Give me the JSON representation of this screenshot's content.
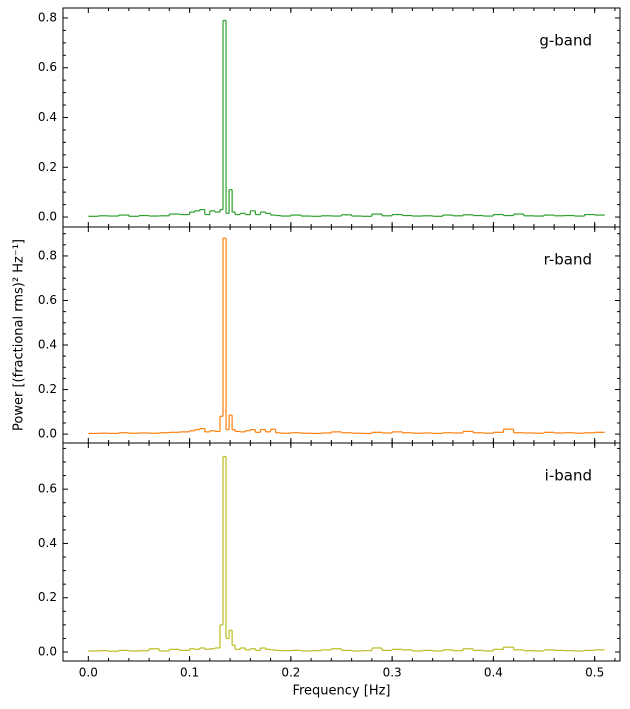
{
  "chart_data": [
    {
      "type": "line",
      "x": [
        0.0,
        0.01,
        0.02,
        0.03,
        0.04,
        0.05,
        0.06,
        0.07,
        0.08,
        0.09,
        0.1,
        0.105,
        0.11,
        0.115,
        0.12,
        0.125,
        0.13,
        0.133,
        0.136,
        0.139,
        0.142,
        0.145,
        0.15,
        0.155,
        0.16,
        0.165,
        0.17,
        0.175,
        0.18,
        0.185,
        0.19,
        0.2,
        0.21,
        0.22,
        0.23,
        0.24,
        0.25,
        0.26,
        0.27,
        0.28,
        0.29,
        0.3,
        0.31,
        0.32,
        0.33,
        0.34,
        0.35,
        0.36,
        0.37,
        0.38,
        0.39,
        0.4,
        0.41,
        0.42,
        0.43,
        0.44,
        0.45,
        0.46,
        0.47,
        0.48,
        0.49,
        0.5
      ],
      "series": [
        {
          "name": "g-band",
          "color": "#2ca02c",
          "values": [
            0.003,
            0.005,
            0.004,
            0.008,
            0.003,
            0.006,
            0.004,
            0.005,
            0.012,
            0.01,
            0.02,
            0.025,
            0.03,
            0.01,
            0.025,
            0.02,
            0.03,
            0.79,
            0.015,
            0.11,
            0.02,
            0.01,
            0.015,
            0.01,
            0.025,
            0.01,
            0.02,
            0.015,
            0.008,
            0.006,
            0.004,
            0.008,
            0.004,
            0.003,
            0.005,
            0.004,
            0.009,
            0.004,
            0.003,
            0.012,
            0.005,
            0.01,
            0.006,
            0.004,
            0.005,
            0.003,
            0.008,
            0.005,
            0.009,
            0.006,
            0.004,
            0.01,
            0.006,
            0.012,
            0.005,
            0.004,
            0.008,
            0.005,
            0.006,
            0.004,
            0.01,
            0.008
          ]
        }
      ],
      "xlim": [
        -0.025,
        0.525
      ],
      "ylim": [
        -0.04,
        0.84
      ],
      "xticks": [
        {
          "value": 0.0,
          "label": ""
        },
        0.1,
        0.2,
        0.3,
        0.4,
        0.5
      ],
      "yticks": [
        {
          "value": 0.0,
          "label": "0.0"
        },
        0.2,
        0.4,
        0.6,
        0.8
      ]
    },
    {
      "type": "line",
      "x": [
        0.0,
        0.01,
        0.02,
        0.03,
        0.04,
        0.05,
        0.06,
        0.07,
        0.08,
        0.09,
        0.1,
        0.105,
        0.11,
        0.115,
        0.12,
        0.125,
        0.13,
        0.133,
        0.136,
        0.139,
        0.142,
        0.145,
        0.15,
        0.155,
        0.16,
        0.165,
        0.17,
        0.175,
        0.18,
        0.185,
        0.19,
        0.2,
        0.21,
        0.22,
        0.23,
        0.24,
        0.25,
        0.26,
        0.27,
        0.28,
        0.29,
        0.3,
        0.31,
        0.32,
        0.33,
        0.34,
        0.35,
        0.36,
        0.37,
        0.38,
        0.39,
        0.4,
        0.41,
        0.42,
        0.43,
        0.44,
        0.45,
        0.46,
        0.47,
        0.48,
        0.49,
        0.5
      ],
      "series": [
        {
          "name": "r-band",
          "color": "#ff7f0e",
          "values": [
            0.003,
            0.004,
            0.003,
            0.006,
            0.004,
            0.005,
            0.004,
            0.006,
            0.008,
            0.01,
            0.015,
            0.02,
            0.025,
            0.01,
            0.015,
            0.012,
            0.08,
            0.88,
            0.02,
            0.085,
            0.02,
            0.012,
            0.01,
            0.015,
            0.02,
            0.008,
            0.02,
            0.01,
            0.022,
            0.006,
            0.004,
            0.006,
            0.004,
            0.003,
            0.005,
            0.01,
            0.006,
            0.004,
            0.003,
            0.008,
            0.005,
            0.01,
            0.006,
            0.004,
            0.005,
            0.003,
            0.006,
            0.005,
            0.012,
            0.006,
            0.004,
            0.008,
            0.022,
            0.006,
            0.005,
            0.004,
            0.008,
            0.005,
            0.006,
            0.004,
            0.006,
            0.008
          ]
        }
      ],
      "xlim": [
        -0.025,
        0.525
      ],
      "ylim": [
        -0.04,
        0.93
      ],
      "xticks": [
        {
          "value": 0.0,
          "label": ""
        },
        0.1,
        0.2,
        0.3,
        0.4,
        0.5
      ],
      "yticks": [
        {
          "value": 0.0,
          "label": "0.0"
        },
        0.2,
        0.4,
        0.6,
        0.8
      ],
      "ylabel": "Power [(fractional rms)² Hz⁻¹]"
    },
    {
      "type": "line",
      "x": [
        0.0,
        0.01,
        0.02,
        0.03,
        0.04,
        0.05,
        0.06,
        0.07,
        0.08,
        0.09,
        0.1,
        0.105,
        0.11,
        0.115,
        0.12,
        0.125,
        0.13,
        0.133,
        0.136,
        0.139,
        0.142,
        0.145,
        0.15,
        0.155,
        0.16,
        0.165,
        0.17,
        0.175,
        0.18,
        0.185,
        0.19,
        0.2,
        0.21,
        0.22,
        0.23,
        0.24,
        0.25,
        0.26,
        0.27,
        0.28,
        0.29,
        0.3,
        0.31,
        0.32,
        0.33,
        0.34,
        0.35,
        0.36,
        0.37,
        0.38,
        0.39,
        0.4,
        0.41,
        0.42,
        0.43,
        0.44,
        0.45,
        0.46,
        0.47,
        0.48,
        0.49,
        0.5
      ],
      "series": [
        {
          "name": "i-band",
          "color": "#bcbd22",
          "values": [
            0.004,
            0.005,
            0.003,
            0.006,
            0.004,
            0.005,
            0.012,
            0.004,
            0.01,
            0.006,
            0.012,
            0.01,
            0.015,
            0.01,
            0.012,
            0.015,
            0.1,
            0.72,
            0.05,
            0.08,
            0.025,
            0.01,
            0.015,
            0.008,
            0.012,
            0.006,
            0.015,
            0.01,
            0.008,
            0.006,
            0.005,
            0.006,
            0.004,
            0.005,
            0.008,
            0.012,
            0.006,
            0.004,
            0.005,
            0.015,
            0.006,
            0.01,
            0.008,
            0.004,
            0.006,
            0.004,
            0.008,
            0.005,
            0.012,
            0.006,
            0.004,
            0.01,
            0.018,
            0.008,
            0.005,
            0.004,
            0.008,
            0.006,
            0.005,
            0.004,
            0.006,
            0.008
          ]
        }
      ],
      "xlim": [
        -0.025,
        0.525
      ],
      "ylim": [
        -0.033,
        0.77
      ],
      "xticks": [
        {
          "value": 0.0,
          "label": "0.0"
        },
        0.1,
        0.2,
        0.3,
        0.4,
        0.5
      ],
      "yticks": [
        {
          "value": 0.0,
          "label": "0.0"
        },
        0.2,
        0.4,
        0.6
      ],
      "xlabel": "Frequency [Hz]"
    }
  ]
}
